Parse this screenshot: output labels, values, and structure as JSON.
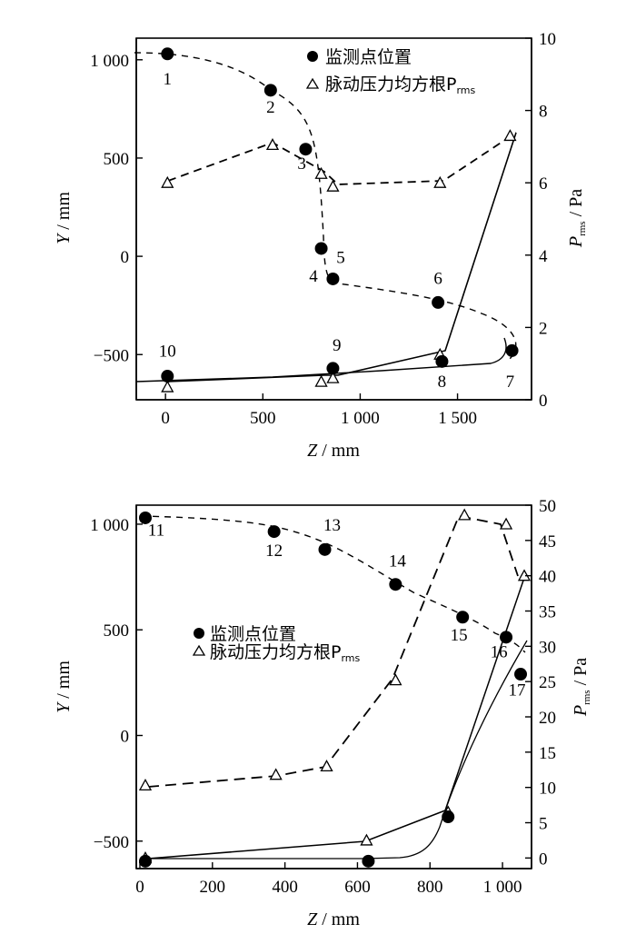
{
  "chart_data": [
    {
      "type": "scatter",
      "x_axis": {
        "label": "Z",
        "unit": "mm",
        "range": [
          -150,
          1880
        ],
        "ticks": [
          0,
          500,
          1000,
          1500
        ],
        "tick_labels": [
          "0",
          "500",
          "1 000",
          "1 500"
        ]
      },
      "y_left": {
        "label": "Y",
        "unit": "mm",
        "range": [
          -730,
          1110
        ],
        "ticks": [
          -500,
          0,
          500,
          1000
        ],
        "tick_labels": [
          "−500",
          "0",
          "500",
          "1 000"
        ]
      },
      "y_right": {
        "label": "P",
        "label_sub": "rms",
        "unit": "Pa",
        "range": [
          0,
          10
        ],
        "ticks": [
          0,
          2,
          4,
          6,
          8,
          10
        ],
        "tick_labels": [
          "0",
          "2",
          "4",
          "6",
          "8",
          "10"
        ]
      },
      "legend": {
        "placement": "top-right",
        "entries": [
          {
            "marker": "filled-circle",
            "text": "监测点位置"
          },
          {
            "marker": "open-triangle",
            "text": "脉动压力均方根P",
            "sub": "rms"
          }
        ]
      },
      "series": [
        {
          "name": "监测点位置",
          "marker": "filled-circle",
          "axis": "left",
          "points": [
            {
              "label": "1",
              "z": 10,
              "y": 1030
            },
            {
              "label": "2",
              "z": 540,
              "y": 845
            },
            {
              "label": "3",
              "z": 720,
              "y": 545
            },
            {
              "label": "4",
              "z": 800,
              "y": 40
            },
            {
              "label": "5",
              "z": 860,
              "y": -115
            },
            {
              "label": "6",
              "z": 1400,
              "y": -235
            },
            {
              "label": "7",
              "z": 1780,
              "y": -480
            },
            {
              "label": "8",
              "z": 1420,
              "y": -535
            },
            {
              "label": "9",
              "z": 860,
              "y": -570
            },
            {
              "label": "10",
              "z": 10,
              "y": -610
            }
          ]
        },
        {
          "name": "脉动压力均方根Prms",
          "marker": "open-triangle",
          "axis": "right",
          "points": [
            {
              "z": 10,
              "p": 6.0
            },
            {
              "z": 550,
              "p": 7.05
            },
            {
              "z": 800,
              "p": 6.25
            },
            {
              "z": 860,
              "p": 5.9
            },
            {
              "z": 1410,
              "p": 6.0
            },
            {
              "z": 1770,
              "p": 7.3
            },
            {
              "z": 10,
              "p": 0.35
            },
            {
              "z": 800,
              "p": 0.5
            },
            {
              "z": 860,
              "p": 0.6
            },
            {
              "z": 1410,
              "p": 1.25
            }
          ]
        }
      ],
      "point_label_positions": {
        "1": [
          10,
          875
        ],
        "2": [
          540,
          730
        ],
        "3": [
          700,
          445
        ],
        "4": [
          760,
          -130
        ],
        "5": [
          900,
          -35
        ],
        "6": [
          1400,
          -140
        ],
        "7": [
          1770,
          -665
        ],
        "8": [
          1420,
          -665
        ],
        "9": [
          880,
          -480
        ],
        "10": [
          10,
          -510
        ]
      }
    },
    {
      "type": "scatter",
      "x_axis": {
        "label": "Z",
        "unit": "mm",
        "range": [
          -10,
          1080
        ],
        "ticks": [
          0,
          200,
          400,
          600,
          800,
          1000
        ],
        "tick_labels": [
          "0",
          "200",
          "400",
          "600",
          "800",
          "1 000"
        ]
      },
      "y_left": {
        "label": "Y",
        "unit": "mm",
        "range": [
          -630,
          1090
        ],
        "ticks": [
          -500,
          0,
          500,
          1000
        ],
        "tick_labels": [
          "−500",
          "0",
          "500",
          "1 000"
        ]
      },
      "y_right": {
        "label": "P",
        "label_sub": "rms",
        "unit": "Pa",
        "range": [
          -1.5,
          50
        ],
        "ticks": [
          0,
          5,
          10,
          15,
          20,
          25,
          30,
          35,
          40,
          45,
          50
        ],
        "tick_labels": [
          "0",
          "5",
          "10",
          "15",
          "20",
          "25",
          "30",
          "35",
          "40",
          "45",
          "50"
        ]
      },
      "legend": {
        "placement": "center-left",
        "entries": [
          {
            "marker": "filled-circle",
            "text": "监测点位置"
          },
          {
            "marker": "open-triangle",
            "text": "脉动压力均方根P",
            "sub": "rms"
          }
        ]
      },
      "series": [
        {
          "name": "监测点位置",
          "marker": "filled-circle",
          "axis": "left",
          "points": [
            {
              "label": "11",
              "z": 15,
              "y": 1030
            },
            {
              "label": "12",
              "z": 370,
              "y": 965
            },
            {
              "label": "13",
              "z": 510,
              "y": 880
            },
            {
              "label": "14",
              "z": 705,
              "y": 715
            },
            {
              "label": "15",
              "z": 890,
              "y": 560
            },
            {
              "label": "16",
              "z": 1010,
              "y": 465
            },
            {
              "label": "17",
              "z": 1050,
              "y": 290
            },
            {
              "label": "",
              "z": 850,
              "y": -385
            },
            {
              "label": "",
              "z": 630,
              "y": -595
            },
            {
              "label": "",
              "z": 15,
              "y": -595
            }
          ]
        },
        {
          "name": "脉动压力均方根Prms",
          "marker": "open-triangle",
          "axis": "right",
          "points": [
            {
              "z": 15,
              "p": 10.3
            },
            {
              "z": 375,
              "p": 11.8
            },
            {
              "z": 515,
              "p": 13.0
            },
            {
              "z": 705,
              "p": 25.2
            },
            {
              "z": 895,
              "p": 48.6
            },
            {
              "z": 1010,
              "p": 47.3
            },
            {
              "z": 1060,
              "p": 40.0
            },
            {
              "z": 15,
              "p": 0.0
            },
            {
              "z": 625,
              "p": 2.5
            },
            {
              "z": 850,
              "p": 6.5
            }
          ]
        }
      ],
      "point_label_positions": {
        "11": [
          45,
          945
        ],
        "12": [
          370,
          850
        ],
        "13": [
          530,
          970
        ],
        "14": [
          710,
          800
        ],
        "15": [
          880,
          450
        ],
        "16": [
          990,
          370
        ],
        "17": [
          1040,
          190
        ]
      }
    }
  ]
}
